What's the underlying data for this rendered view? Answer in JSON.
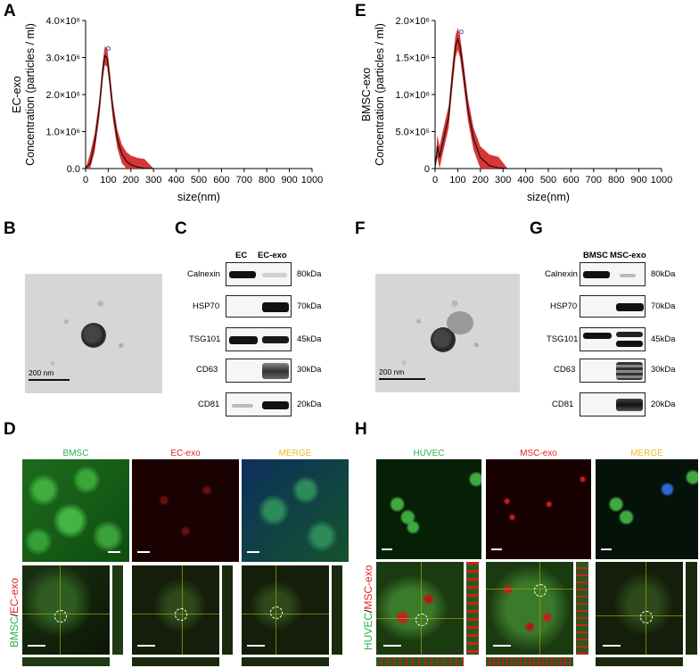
{
  "panels": {
    "A": "A",
    "B": "B",
    "C": "C",
    "D": "D",
    "E": "E",
    "F": "F",
    "G": "G",
    "H": "H"
  },
  "chart_data": [
    {
      "type": "area",
      "panel": "A",
      "ylabel_line1": "EC-exo",
      "ylabel_line2": "Concentration (particles / ml)",
      "xlabel": "size(nm)",
      "xticks": [
        "0",
        "100",
        "200",
        "300",
        "400",
        "500",
        "600",
        "700",
        "800",
        "900",
        "1000"
      ],
      "yticks": [
        "0.0",
        "1.0×10⁶",
        "2.0×10⁶",
        "3.0×10⁶",
        "4.0×10⁶"
      ],
      "xlim": [
        0,
        1000
      ],
      "ylim": [
        0,
        4000000
      ],
      "x": [
        0,
        20,
        40,
        60,
        75,
        85,
        95,
        105,
        120,
        140,
        160,
        180,
        200,
        230,
        260,
        300
      ],
      "y": [
        0,
        150000,
        700000,
        1600000,
        2600000,
        3050000,
        3000000,
        2500000,
        1600000,
        800000,
        400000,
        200000,
        100000,
        40000,
        10000,
        0
      ],
      "band": 250000,
      "color": "#d42020"
    },
    {
      "type": "area",
      "panel": "E",
      "ylabel_line1": "BMSC-exo",
      "ylabel_line2": "Concentration (particles / ml)",
      "xlabel": "size(nm)",
      "xticks": [
        "0",
        "100",
        "200",
        "300",
        "400",
        "500",
        "600",
        "700",
        "800",
        "900",
        "1000"
      ],
      "yticks": [
        "0",
        "5.0×10⁵",
        "1.0×10⁶",
        "1.5×10⁶",
        "2.0×10⁶"
      ],
      "xlim": [
        0,
        1000
      ],
      "ylim": [
        0,
        2000000
      ],
      "x": [
        0,
        10,
        20,
        30,
        45,
        60,
        75,
        90,
        100,
        110,
        125,
        145,
        170,
        200,
        240,
        280,
        320
      ],
      "y": [
        0,
        300000,
        150000,
        300000,
        500000,
        700000,
        1200000,
        1650000,
        1750000,
        1650000,
        1300000,
        800000,
        400000,
        150000,
        40000,
        8000,
        0
      ],
      "band": 150000,
      "color": "#d42020"
    }
  ],
  "tem": [
    {
      "scale": "200 nm"
    },
    {
      "scale": "200 nm"
    }
  ],
  "western_C": {
    "headers": [
      "EC",
      "EC-exo"
    ],
    "rows": [
      {
        "protein": "Calnexin",
        "kda": "80kDa"
      },
      {
        "protein": "HSP70",
        "kda": "70kDa"
      },
      {
        "protein": "TSG101",
        "kda": "45kDa"
      },
      {
        "protein": "CD63",
        "kda": "30kDa"
      },
      {
        "protein": "CD81",
        "kda": "20kDa"
      }
    ]
  },
  "western_G": {
    "headers": [
      "BMSC",
      "MSC-exo"
    ],
    "rows": [
      {
        "protein": "Calnexin",
        "kda": "80kDa"
      },
      {
        "protein": "HSP70",
        "kda": "70kDa"
      },
      {
        "protein": "TSG101",
        "kda": "45kDa"
      },
      {
        "protein": "CD63",
        "kda": "30kDa"
      },
      {
        "protein": "CD81",
        "kda": "20kDa"
      }
    ]
  },
  "fluor_D": {
    "titles": [
      "BMSC",
      "EC-exo",
      "MERGE"
    ],
    "title_colors": [
      "#2db34a",
      "#e02424",
      "#e8c020"
    ],
    "side_label_a": "BMSC",
    "side_label_sep": "/",
    "side_label_b": "EC-exo"
  },
  "fluor_H": {
    "titles": [
      "HUVEC",
      "MSC-exo",
      "MERGE"
    ],
    "title_colors": [
      "#2db34a",
      "#e02424",
      "#e8c020"
    ],
    "side_label_a": "HUVEC",
    "side_label_sep": "/",
    "side_label_b": "MSC-exo"
  }
}
